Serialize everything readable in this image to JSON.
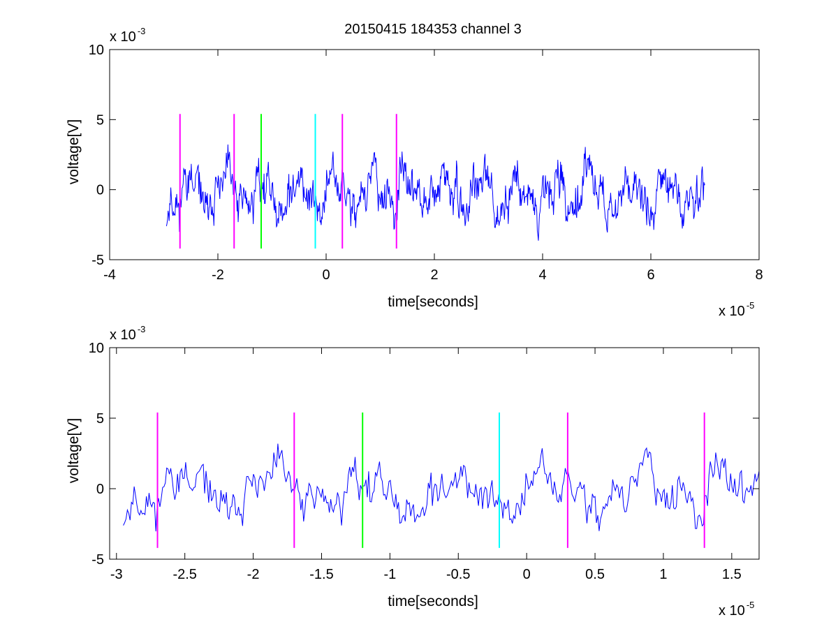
{
  "figure": {
    "title": "20150415 184353 channel 3"
  },
  "chart_data": [
    {
      "type": "line",
      "title": "20150415 184353 channel 3",
      "xlabel": "time[seconds]",
      "ylabel": "voltage[V]",
      "x_exponent_label": "x 10",
      "x_exponent": "-5",
      "y_exponent_label": "x 10",
      "y_exponent": "-3",
      "xlim": [
        -4,
        8
      ],
      "ylim": [
        -5,
        10
      ],
      "xticks": [
        -4,
        -2,
        0,
        2,
        4,
        6,
        8
      ],
      "xtick_labels": [
        "-4",
        "-2",
        "0",
        "2",
        "4",
        "6",
        "8"
      ],
      "yticks": [
        -5,
        0,
        5,
        10
      ],
      "ytick_labels": [
        "-5",
        "0",
        "5",
        "10"
      ],
      "grid": false,
      "series": [
        {
          "color": "#0000ff",
          "x_start": -2.95,
          "x_end": 7.0,
          "points": 1000,
          "seed": 11,
          "mean": -0.3,
          "spread": 1.6
        }
      ],
      "markers": [
        {
          "x": -2.7,
          "color": "#ff00ff",
          "y_range": [
            -4.2,
            5.4
          ]
        },
        {
          "x": -1.7,
          "color": "#ff00ff",
          "y_range": [
            -4.2,
            5.4
          ]
        },
        {
          "x": -1.2,
          "color": "#00ff00",
          "y_range": [
            -4.2,
            5.4
          ]
        },
        {
          "x": -0.2,
          "color": "#00ffff",
          "y_range": [
            -4.2,
            5.4
          ]
        },
        {
          "x": 0.3,
          "color": "#ff00ff",
          "y_range": [
            -4.2,
            5.4
          ]
        },
        {
          "x": 1.3,
          "color": "#ff00ff",
          "y_range": [
            -4.2,
            5.4
          ]
        }
      ]
    },
    {
      "type": "line",
      "title": "",
      "xlabel": "time[seconds]",
      "ylabel": "voltage[V]",
      "x_exponent_label": "x 10",
      "x_exponent": "-5",
      "y_exponent_label": "x 10",
      "y_exponent": "-3",
      "xlim": [
        -3.05,
        1.7
      ],
      "ylim": [
        -5,
        10
      ],
      "xticks": [
        -3,
        -2.5,
        -2,
        -1.5,
        -1,
        -0.5,
        0,
        0.5,
        1,
        1.5
      ],
      "xtick_labels": [
        "-3",
        "-2.5",
        "-2",
        "-1.5",
        "-1",
        "-0.5",
        "0",
        "0.5",
        "1",
        "1.5"
      ],
      "yticks": [
        -5,
        0,
        5,
        10
      ],
      "ytick_labels": [
        "-5",
        "0",
        "5",
        "10"
      ],
      "grid": false,
      "series": [
        {
          "color": "#0000ff",
          "x_start": -2.95,
          "x_end": 1.7,
          "points": 470,
          "seed": 11,
          "mean": -0.3,
          "spread": 1.6
        }
      ],
      "markers": [
        {
          "x": -2.7,
          "color": "#ff00ff",
          "y_range": [
            -4.2,
            5.4
          ]
        },
        {
          "x": -1.7,
          "color": "#ff00ff",
          "y_range": [
            -4.2,
            5.4
          ]
        },
        {
          "x": -1.2,
          "color": "#00ff00",
          "y_range": [
            -4.2,
            5.4
          ]
        },
        {
          "x": -0.2,
          "color": "#00ffff",
          "y_range": [
            -4.2,
            5.4
          ]
        },
        {
          "x": 0.3,
          "color": "#ff00ff",
          "y_range": [
            -4.2,
            5.4
          ]
        },
        {
          "x": 1.3,
          "color": "#ff00ff",
          "y_range": [
            -4.2,
            5.4
          ]
        }
      ]
    }
  ]
}
